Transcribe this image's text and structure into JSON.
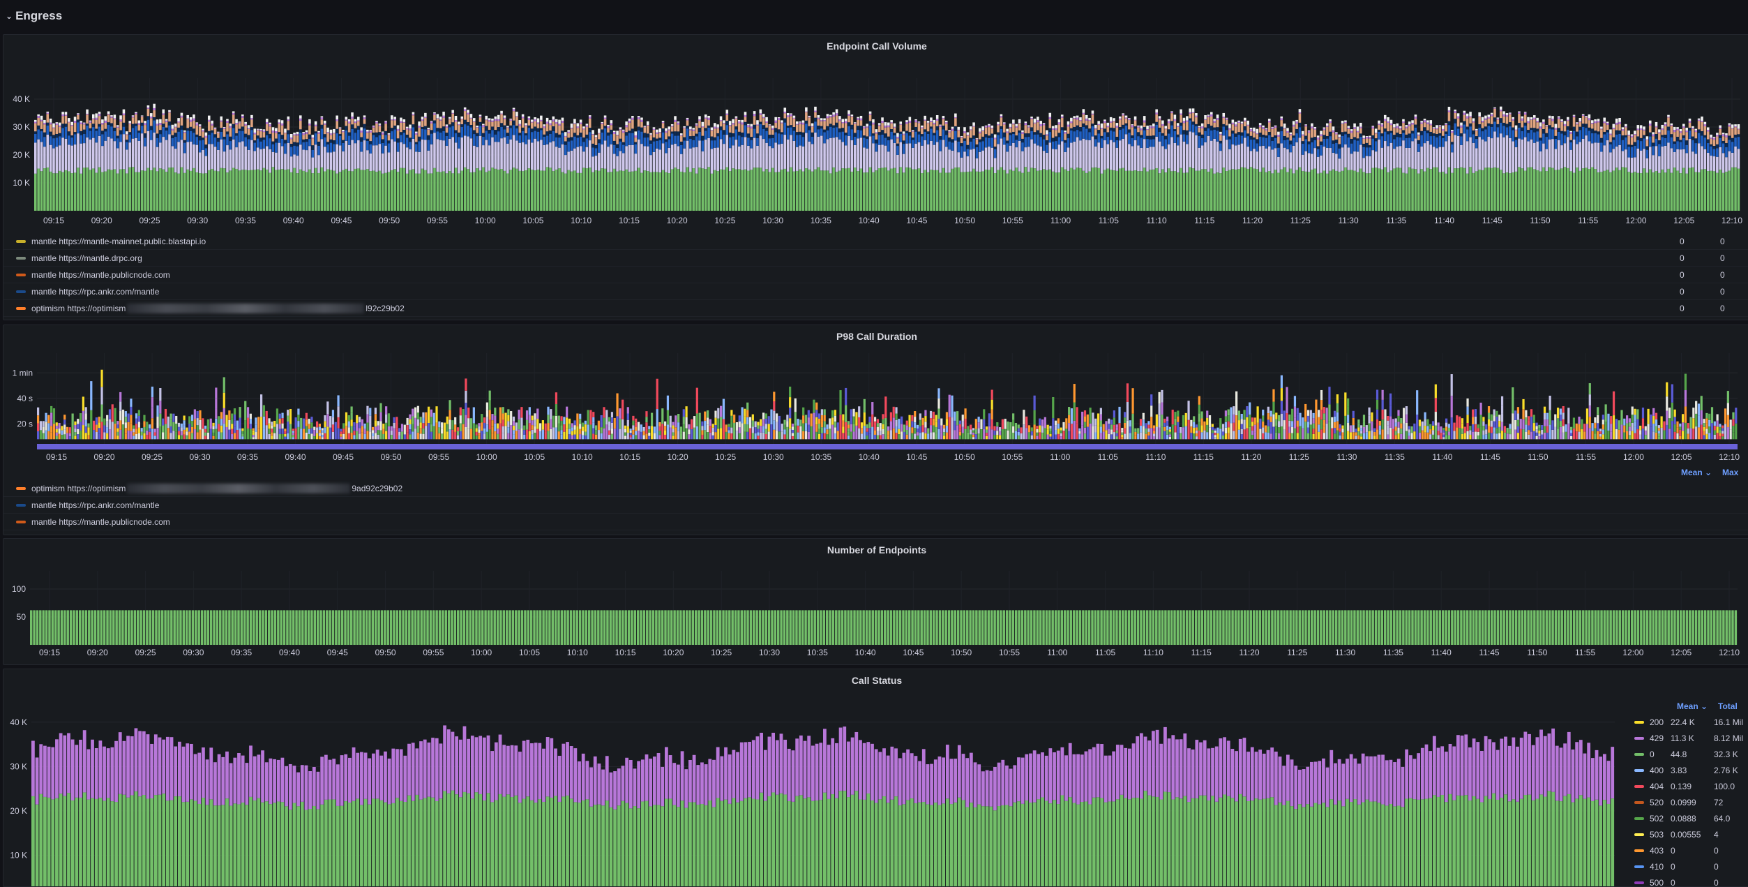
{
  "row": {
    "title": "Engress",
    "chevron_icon": "chevron-down-icon"
  },
  "x_ticks": [
    "09:15",
    "09:20",
    "09:25",
    "09:30",
    "09:35",
    "09:40",
    "09:45",
    "09:50",
    "09:55",
    "10:00",
    "10:05",
    "10:10",
    "10:15",
    "10:20",
    "10:25",
    "10:30",
    "10:35",
    "10:40",
    "10:45",
    "10:50",
    "10:55",
    "11:00",
    "11:05",
    "11:10",
    "11:15",
    "11:20",
    "11:25",
    "11:30",
    "11:35",
    "11:40",
    "11:45",
    "11:50",
    "11:55",
    "12:00",
    "12:05",
    "12:10"
  ],
  "panels": {
    "call_volume": {
      "title": "Endpoint Call Volume",
      "y_ticks": [
        "40 K",
        "30 K",
        "20 K",
        "10 K"
      ],
      "legend": [
        {
          "name": "mantle https://mantle-mainnet.public.blastapi.io",
          "color": "#c8b02a",
          "mean": "0",
          "max": "0"
        },
        {
          "name": "mantle https://mantle.drpc.org",
          "color": "#7c8a7c",
          "mean": "0",
          "max": "0"
        },
        {
          "name": "mantle https://mantle.publicnode.com",
          "color": "#d05a1a",
          "mean": "0",
          "max": "0"
        },
        {
          "name": "mantle https://rpc.ankr.com/mantle",
          "color": "#1a4a8a",
          "mean": "0",
          "max": "0"
        },
        {
          "name_prefix": "optimism https://optimism",
          "name_suffix": "l92c29b02",
          "color": "#ff7f2a",
          "mean": "0",
          "max": "0"
        }
      ]
    },
    "p98": {
      "title": "P98 Call Duration",
      "y_ticks": [
        "1 min",
        "40 s",
        "20 s"
      ],
      "legend_headers": {
        "mean": "Mean",
        "max": "Max"
      },
      "legend": [
        {
          "name_prefix": "optimism https://optimism",
          "name_suffix": "9ad92c29b02",
          "color": "#ff7f2a"
        },
        {
          "name": "mantle https://rpc.ankr.com/mantle",
          "color": "#1a4a8a"
        },
        {
          "name": "mantle https://mantle.publicnode.com",
          "color": "#d05a1a"
        }
      ]
    },
    "endpoints": {
      "title": "Number of Endpoints",
      "y_ticks": [
        "100",
        "50"
      ],
      "value": 50
    },
    "call_status": {
      "title": "Call Status",
      "y_ticks": [
        "40 K",
        "30 K",
        "20 K",
        "10 K"
      ],
      "legend_headers": {
        "mean": "Mean",
        "total": "Total"
      },
      "legend": [
        {
          "name": "200",
          "color": "#fade2a",
          "mean": "22.4 K",
          "total": "16.1 Mil"
        },
        {
          "name": "429",
          "color": "#b877d9",
          "mean": "11.3 K",
          "total": "8.12 Mil"
        },
        {
          "name": "0",
          "color": "#73bf69",
          "mean": "44.8",
          "total": "32.3 K"
        },
        {
          "name": "400",
          "color": "#8ab8ff",
          "mean": "3.83",
          "total": "2.76 K"
        },
        {
          "name": "404",
          "color": "#f2495c",
          "mean": "0.139",
          "total": "100.0"
        },
        {
          "name": "520",
          "color": "#c4571e",
          "mean": "0.0999",
          "total": "72"
        },
        {
          "name": "502",
          "color": "#56a64b",
          "mean": "0.0888",
          "total": "64.0"
        },
        {
          "name": "503",
          "color": "#ffee52",
          "mean": "0.00555",
          "total": "4"
        },
        {
          "name": "403",
          "color": "#ff9830",
          "mean": "0",
          "total": "0"
        },
        {
          "name": "410",
          "color": "#5794f2",
          "mean": "0",
          "total": "0"
        },
        {
          "name": "500",
          "color": "#8f3bb8",
          "mean": "0",
          "total": "0"
        }
      ]
    }
  },
  "chart_data": [
    {
      "type": "bar",
      "title": "Endpoint Call Volume",
      "ylim": [
        0,
        45000
      ],
      "series_description": "stacked",
      "avg_total": 32000
    },
    {
      "type": "bar",
      "title": "P98 Call Duration",
      "ylim": [
        0,
        70
      ],
      "y_unit": "s"
    },
    {
      "type": "bar",
      "title": "Number of Endpoints",
      "ylim": [
        0,
        120
      ],
      "value": 50
    },
    {
      "type": "bar",
      "title": "Call Status",
      "ylim": [
        0,
        45000
      ],
      "series": [
        {
          "name": "200",
          "mean": 22400
        },
        {
          "name": "429",
          "mean": 11300
        }
      ]
    }
  ]
}
